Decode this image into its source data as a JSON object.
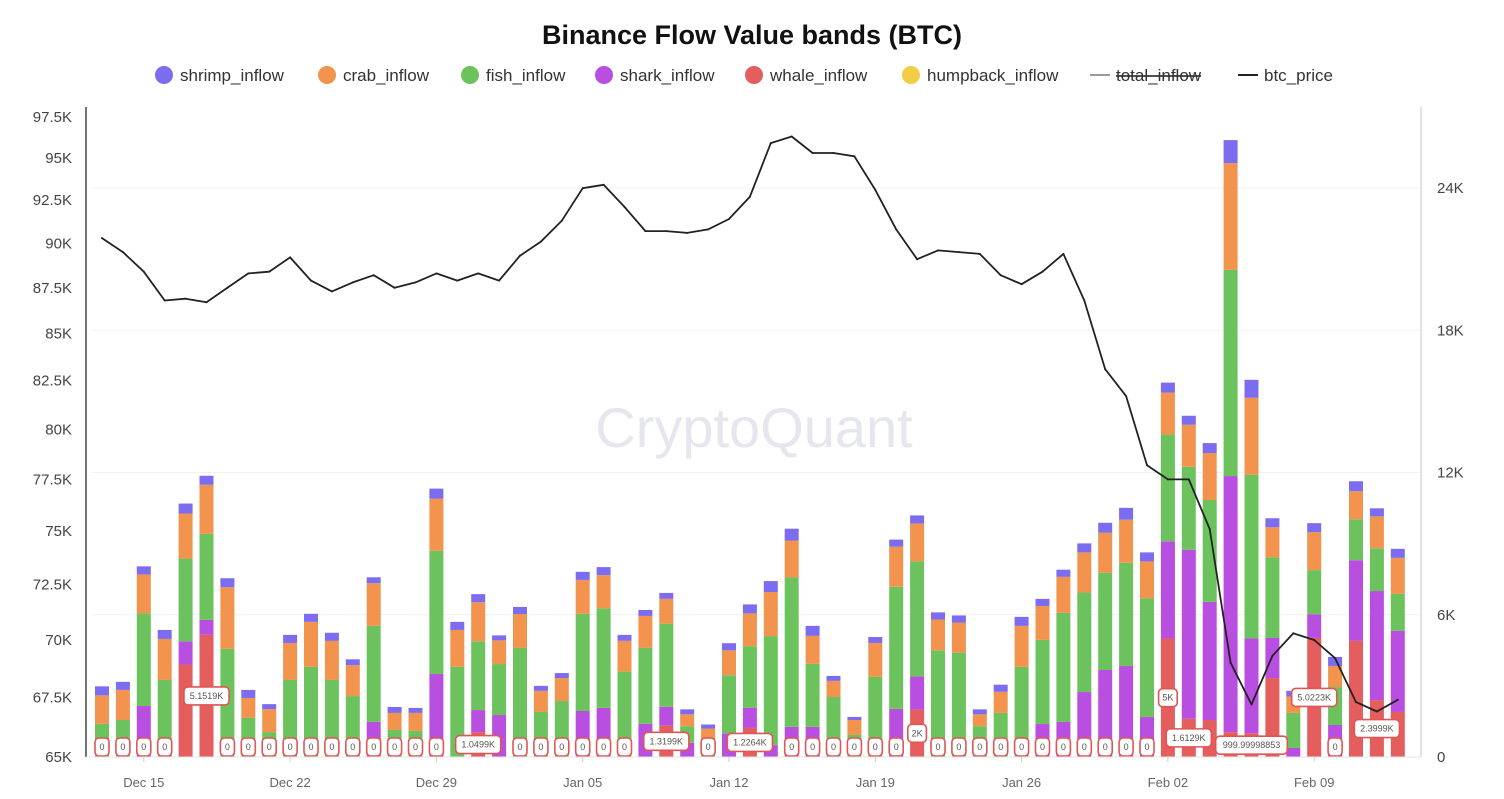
{
  "chart_data": {
    "type": "bar",
    "title": "Binance Flow Value bands (BTC)",
    "watermark": "CryptoQuant",
    "legend_position": "top",
    "legend": [
      {
        "name": "shrimp_inflow",
        "color": "#7b6cf0",
        "kind": "dot",
        "hidden": false
      },
      {
        "name": "crab_inflow",
        "color": "#f2934e",
        "kind": "dot",
        "hidden": false
      },
      {
        "name": "fish_inflow",
        "color": "#6cc35e",
        "kind": "dot",
        "hidden": false
      },
      {
        "name": "shark_inflow",
        "color": "#b94fe0",
        "kind": "dot",
        "hidden": false
      },
      {
        "name": "whale_inflow",
        "color": "#e55e5e",
        "kind": "dot",
        "hidden": false
      },
      {
        "name": "humpback_inflow",
        "color": "#f2cc45",
        "kind": "dot",
        "hidden": false
      },
      {
        "name": "total_inflow",
        "color": "#999999",
        "kind": "line",
        "hidden": true
      },
      {
        "name": "btc_price",
        "color": "#222222",
        "kind": "line",
        "hidden": false
      }
    ],
    "x": [
      "Dec 13",
      "Dec 14",
      "Dec 15",
      "Dec 16",
      "Dec 17",
      "Dec 18",
      "Dec 19",
      "Dec 20",
      "Dec 21",
      "Dec 22",
      "Dec 23",
      "Dec 24",
      "Dec 25",
      "Dec 26",
      "Dec 27",
      "Dec 28",
      "Dec 29",
      "Dec 30",
      "Dec 31",
      "Jan 01",
      "Jan 02",
      "Jan 03",
      "Jan 04",
      "Jan 05",
      "Jan 06",
      "Jan 07",
      "Jan 08",
      "Jan 09",
      "Jan 10",
      "Jan 11",
      "Jan 12",
      "Jan 13",
      "Jan 14",
      "Jan 15",
      "Jan 16",
      "Jan 17",
      "Jan 18",
      "Jan 19",
      "Jan 20",
      "Jan 21",
      "Jan 22",
      "Jan 23",
      "Jan 24",
      "Jan 25",
      "Jan 26",
      "Jan 27",
      "Jan 28",
      "Jan 29",
      "Jan 30",
      "Jan 31",
      "Feb 01",
      "Feb 02",
      "Feb 03",
      "Feb 04",
      "Feb 05",
      "Feb 06",
      "Feb 07",
      "Feb 08",
      "Feb 09",
      "Feb 10",
      "Feb 11",
      "Feb 12",
      "Feb 13"
    ],
    "x_ticks": [
      "Dec 15",
      "Dec 22",
      "Dec 29",
      "Jan 05",
      "Jan 12",
      "Jan 19",
      "Jan 26",
      "Feb 02",
      "Feb 09"
    ],
    "y_left": {
      "scale": "log",
      "range": [
        65000,
        97500
      ],
      "ticks": [
        "65K",
        "67.5K",
        "70K",
        "72.5K",
        "75K",
        "77.5K",
        "80K",
        "82.5K",
        "85K",
        "87.5K",
        "90K",
        "92.5K",
        "95K",
        "97.5K"
      ],
      "tick_values": [
        65000,
        67500,
        70000,
        72500,
        75000,
        77500,
        80000,
        82500,
        85000,
        87500,
        90000,
        92500,
        95000,
        97500
      ]
    },
    "y_right": {
      "scale": "linear",
      "range": [
        0,
        24000
      ],
      "ticks": [
        "0",
        "6K",
        "12K",
        "18K",
        "24K"
      ],
      "tick_values": [
        0,
        6000,
        12000,
        18000,
        24000
      ]
    },
    "grid": true,
    "stack_order": [
      "whale_inflow",
      "shark_inflow",
      "fish_inflow",
      "crab_inflow",
      "shrimp_inflow",
      "humpback_inflow"
    ],
    "series": [
      {
        "name": "whale_inflow",
        "axis": "right",
        "values": [
          0,
          0,
          0,
          0,
          3900,
          5151.9,
          0,
          0,
          0,
          0,
          0,
          0,
          0,
          0,
          0,
          0,
          0,
          0,
          1049.9,
          0,
          0,
          0,
          0,
          0,
          0,
          0,
          0,
          1319.9,
          0,
          0,
          0,
          1226.4,
          0,
          0,
          0,
          0,
          0,
          0,
          0,
          2000,
          0,
          0,
          0,
          0,
          0,
          0,
          0,
          0,
          0,
          0,
          0,
          5000,
          1612.9,
          1560,
          1050,
          999.99998853,
          3330,
          0,
          5022.3,
          0,
          4900,
          2399.9,
          1900
        ]
      },
      {
        "name": "shark_inflow",
        "axis": "right",
        "values": [
          0,
          0,
          2150,
          0,
          970,
          630,
          0,
          0,
          0,
          0,
          0,
          0,
          0,
          1480,
          0,
          0,
          3500,
          0,
          930,
          1770,
          0,
          0,
          0,
          1940,
          2070,
          0,
          1400,
          800,
          600,
          0,
          1000,
          850,
          500,
          1270,
          1270,
          0,
          0,
          0,
          2030,
          1400,
          0,
          0,
          0,
          0,
          0,
          1390,
          1480,
          2740,
          3670,
          3840,
          1690,
          4100,
          7130,
          4980,
          10800,
          4000,
          1690,
          380,
          1000,
          1350,
          3400,
          4600,
          3420
        ]
      },
      {
        "name": "fish_inflow",
        "axis": "right",
        "values": [
          1400,
          1560,
          3900,
          3250,
          3500,
          3630,
          4560,
          1650,
          1050,
          3250,
          3800,
          3250,
          2570,
          4050,
          1140,
          1100,
          5200,
          3800,
          2900,
          2150,
          4600,
          1900,
          2360,
          4100,
          4200,
          3600,
          3200,
          3500,
          700,
          800,
          2450,
          2600,
          4600,
          6300,
          2660,
          2530,
          930,
          3380,
          5150,
          4850,
          4500,
          4400,
          1300,
          1860,
          3800,
          3550,
          4600,
          4200,
          4100,
          4350,
          5000,
          4500,
          3500,
          4300,
          8700,
          6900,
          3400,
          1480,
          1860,
          1600,
          1730,
          1800,
          1560
        ]
      },
      {
        "name": "crab_inflow",
        "axis": "right",
        "values": [
          1200,
          1270,
          1650,
          1730,
          1900,
          2070,
          2600,
          840,
          970,
          1560,
          1900,
          1650,
          1300,
          1800,
          720,
          760,
          2200,
          1560,
          1650,
          1000,
          1430,
          890,
          970,
          1430,
          1400,
          1300,
          1350,
          1050,
          500,
          400,
          1050,
          1380,
          1860,
          1560,
          1180,
          680,
          630,
          1430,
          1690,
          1600,
          1300,
          1270,
          500,
          890,
          1730,
          1430,
          1520,
          1690,
          1690,
          1820,
          1560,
          1770,
          1770,
          1980,
          4500,
          3250,
          1270,
          680,
          1600,
          890,
          1180,
          1350,
          1520
        ]
      },
      {
        "name": "shrimp_inflow",
        "axis": "right",
        "values": [
          380,
          340,
          340,
          380,
          420,
          380,
          380,
          340,
          210,
          340,
          340,
          340,
          250,
          250,
          250,
          210,
          420,
          340,
          340,
          210,
          300,
          210,
          210,
          340,
          340,
          250,
          250,
          250,
          210,
          170,
          300,
          380,
          460,
          500,
          420,
          210,
          130,
          250,
          300,
          340,
          300,
          300,
          210,
          300,
          380,
          300,
          300,
          380,
          420,
          500,
          380,
          420,
          380,
          420,
          970,
          760,
          380,
          250,
          380,
          380,
          420,
          340,
          380
        ]
      },
      {
        "name": "humpback_inflow",
        "axis": "right",
        "values": [
          0,
          0,
          0,
          0,
          0,
          0,
          0,
          0,
          0,
          0,
          0,
          0,
          0,
          0,
          0,
          0,
          0,
          0,
          0,
          0,
          0,
          0,
          0,
          0,
          0,
          0,
          0,
          0,
          0,
          0,
          0,
          0,
          0,
          0,
          0,
          0,
          0,
          0,
          0,
          0,
          0,
          0,
          0,
          0,
          0,
          0,
          0,
          0,
          0,
          0,
          0,
          0,
          0,
          0,
          0,
          0,
          0,
          0,
          0,
          0,
          0,
          0,
          0
        ]
      },
      {
        "name": "btc_price",
        "axis": "left",
        "type": "line",
        "values": [
          90300,
          89500,
          88400,
          86800,
          86900,
          86700,
          87500,
          88300,
          88400,
          89200,
          87900,
          87300,
          87800,
          88200,
          87500,
          87800,
          88300,
          87900,
          88300,
          87900,
          89300,
          90100,
          91300,
          93200,
          93400,
          92100,
          90700,
          90700,
          90600,
          90800,
          91400,
          92700,
          95900,
          96300,
          95300,
          95300,
          95100,
          93100,
          90800,
          89100,
          89600,
          89500,
          89400,
          88200,
          87700,
          88400,
          89400,
          86800,
          83100,
          81700,
          78200,
          77500,
          77500,
          75100,
          69000,
          67200,
          69300,
          70300,
          70000,
          69200,
          67300,
          66900,
          67400
        ]
      }
    ],
    "whale_labels": [
      "0",
      "0",
      "0",
      "0",
      null,
      "5.1519K",
      "0",
      "0",
      "0",
      "0",
      "0",
      "0",
      "0",
      "0",
      "0",
      "0",
      "0",
      null,
      "1.0499K",
      null,
      "0",
      "0",
      "0",
      "0",
      "0",
      "0",
      null,
      "1.3199K",
      null,
      "0",
      null,
      "1.2264K",
      null,
      "0",
      "0",
      "0",
      "0",
      "0",
      "0",
      "2K",
      "0",
      "0",
      "0",
      "0",
      "0",
      "0",
      "0",
      "0",
      "0",
      "0",
      "0",
      "5K",
      "1.6129K",
      null,
      null,
      "999.99998853",
      null,
      null,
      "5.0223K",
      "0",
      null,
      "2.3999K",
      null
    ]
  }
}
